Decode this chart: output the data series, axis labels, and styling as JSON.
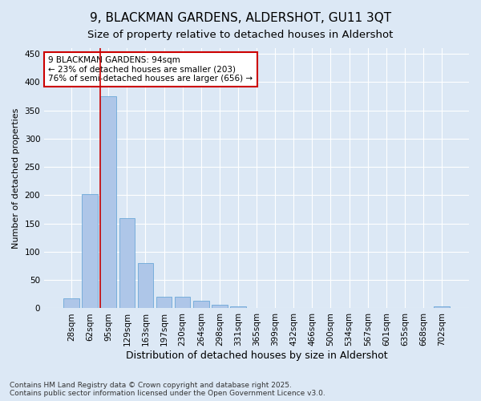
{
  "title": "9, BLACKMAN GARDENS, ALDERSHOT, GU11 3QT",
  "subtitle": "Size of property relative to detached houses in Aldershot",
  "xlabel": "Distribution of detached houses by size in Aldershot",
  "ylabel": "Number of detached properties",
  "categories": [
    "28sqm",
    "62sqm",
    "95sqm",
    "129sqm",
    "163sqm",
    "197sqm",
    "230sqm",
    "264sqm",
    "298sqm",
    "331sqm",
    "365sqm",
    "399sqm",
    "432sqm",
    "466sqm",
    "500sqm",
    "534sqm",
    "567sqm",
    "601sqm",
    "635sqm",
    "668sqm",
    "702sqm"
  ],
  "values": [
    17,
    202,
    375,
    160,
    80,
    20,
    20,
    13,
    7,
    4,
    0,
    1,
    0,
    0,
    0,
    0,
    0,
    0,
    0,
    0,
    3
  ],
  "bar_color": "#aec6e8",
  "bar_edge_color": "#5a9fd4",
  "vline_x_index": 2,
  "vline_color": "#cc0000",
  "annotation_text": "9 BLACKMAN GARDENS: 94sqm\n← 23% of detached houses are smaller (203)\n76% of semi-detached houses are larger (656) →",
  "annotation_box_color": "#ffffff",
  "annotation_box_edge": "#cc0000",
  "ylim": [
    0,
    460
  ],
  "yticks": [
    0,
    50,
    100,
    150,
    200,
    250,
    300,
    350,
    400,
    450
  ],
  "background_color": "#dce8f5",
  "grid_color": "#ffffff",
  "fig_background_color": "#dce8f5",
  "footer": "Contains HM Land Registry data © Crown copyright and database right 2025.\nContains public sector information licensed under the Open Government Licence v3.0.",
  "title_fontsize": 11,
  "subtitle_fontsize": 9.5,
  "xlabel_fontsize": 9,
  "ylabel_fontsize": 8,
  "tick_fontsize": 7.5,
  "annotation_fontsize": 7.5,
  "footer_fontsize": 6.5
}
